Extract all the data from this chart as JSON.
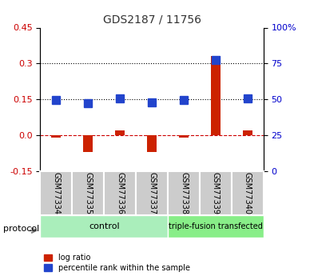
{
  "title": "GDS2187 / 11756",
  "samples": [
    "GSM77334",
    "GSM77335",
    "GSM77336",
    "GSM77337",
    "GSM77338",
    "GSM77339",
    "GSM77340"
  ],
  "log_ratio": [
    -0.01,
    -0.07,
    0.02,
    -0.07,
    -0.01,
    0.33,
    0.02
  ],
  "percentile_rank": [
    0.147,
    0.135,
    0.155,
    0.137,
    0.148,
    0.315,
    0.153
  ],
  "ylim_left": [
    -0.15,
    0.45
  ],
  "ylim_right": [
    0,
    100
  ],
  "yticks_left": [
    -0.15,
    0.0,
    0.15,
    0.3,
    0.45
  ],
  "yticks_right": [
    0,
    25,
    50,
    75,
    100
  ],
  "hlines": [
    0.0,
    0.15,
    0.3
  ],
  "hline_styles": [
    "dashed",
    "dotted",
    "dotted"
  ],
  "hline_colors": [
    "#cc0000",
    "#000000",
    "#000000"
  ],
  "control_group": [
    "GSM77334",
    "GSM77335",
    "GSM77336",
    "GSM77337"
  ],
  "treatment_group": [
    "GSM77338",
    "GSM77339",
    "GSM77340"
  ],
  "control_label": "control",
  "treatment_label": "triple-fusion transfected",
  "protocol_label": "protocol",
  "bar_color_red": "#cc2200",
  "bar_color_blue": "#2244cc",
  "control_bg": "#aaeebb",
  "treatment_bg": "#88ee88",
  "sample_box_bg": "#cccccc",
  "legend_red_label": "log ratio",
  "legend_blue_label": "percentile rank within the sample"
}
